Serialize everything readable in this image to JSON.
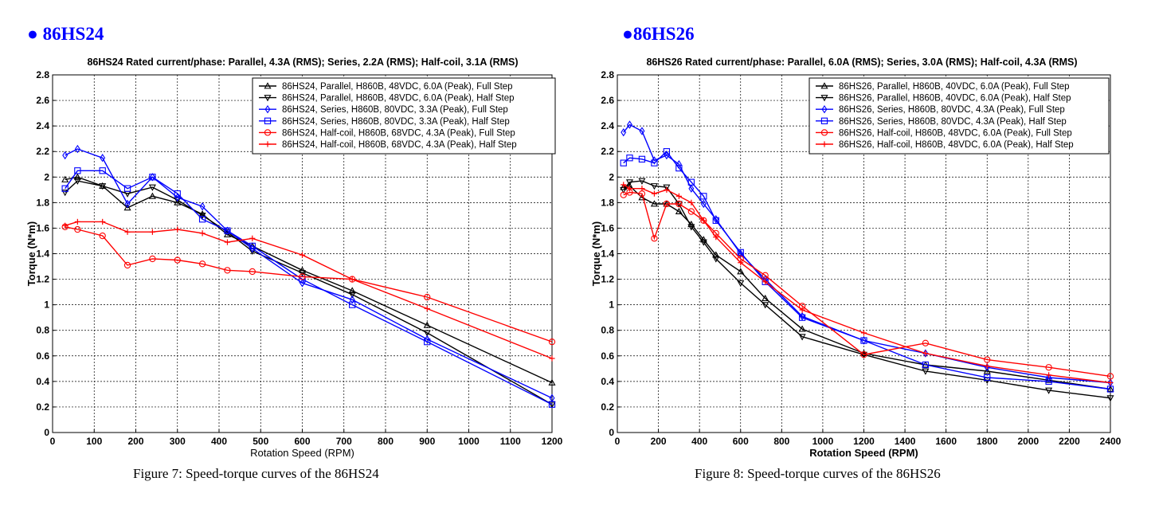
{
  "headers": [
    {
      "bullet": "●",
      "text": "86HS24"
    },
    {
      "bullet": "●",
      "text": "86HS26"
    }
  ],
  "captions": [
    "Figure 7: Speed-torque curves of the 86HS24",
    "Figure 8: Speed-torque curves of the 86HS26"
  ],
  "colors": {
    "header": "#0000ff",
    "black": "#000000",
    "blue": "#0000ff",
    "red": "#ff0000"
  },
  "chart_data": [
    {
      "type": "line",
      "title": "86HS24 Rated current/phase: Parallel, 4.3A (RMS); Series, 2.2A (RMS); Half-coil, 3.1A (RMS)",
      "xlabel": "Rotation Speed (RPM)",
      "ylabel": "Torque (N*m)",
      "xlim": [
        0,
        1200
      ],
      "ylim": [
        0,
        2.8
      ],
      "xticks": [
        0,
        100,
        200,
        300,
        400,
        500,
        600,
        700,
        800,
        900,
        1000,
        1100,
        1200
      ],
      "yticks": [
        0,
        0.2,
        0.4,
        0.6,
        0.8,
        1,
        1.2,
        1.4,
        1.6,
        1.8,
        2,
        2.2,
        2.4,
        2.6,
        2.8
      ],
      "grid": true,
      "legend_position": "top-right",
      "xlabel_bold": false,
      "x": [
        30,
        60,
        120,
        180,
        240,
        300,
        360,
        420,
        480,
        600,
        720,
        900,
        1200
      ],
      "series": [
        {
          "name": "86HS24, Parallel, H860B, 48VDC, 6.0A (Peak), Full Step",
          "color": "#000000",
          "marker": "triangle-up",
          "values": [
            1.98,
            2.0,
            1.93,
            1.76,
            1.85,
            1.8,
            1.71,
            1.55,
            1.46,
            1.27,
            1.11,
            0.84,
            0.39
          ]
        },
        {
          "name": "86HS24, Parallel, H860B, 48VDC, 6.0A (Peak), Half Step",
          "color": "#000000",
          "marker": "triangle-down",
          "values": [
            1.88,
            1.97,
            1.93,
            1.87,
            1.92,
            1.82,
            1.7,
            1.57,
            1.42,
            1.25,
            1.08,
            0.78,
            0.22
          ]
        },
        {
          "name": "86HS24, Series, H860B, 80VDC, 3.3A (Peak), Full Step",
          "color": "#0000ff",
          "marker": "diamond",
          "values": [
            2.17,
            2.22,
            2.15,
            1.79,
            2.0,
            1.84,
            1.77,
            1.58,
            1.44,
            1.17,
            1.04,
            0.73,
            0.27
          ]
        },
        {
          "name": "86HS24, Series, H860B, 80VDC, 3.3A (Peak), Half Step",
          "color": "#0000ff",
          "marker": "square",
          "values": [
            1.91,
            2.05,
            2.05,
            1.91,
            2.0,
            1.87,
            1.67,
            1.58,
            1.46,
            1.2,
            1.0,
            0.71,
            0.22
          ]
        },
        {
          "name": "86HS24, Half-coil, H860B, 68VDC, 4.3A (Peak), Full Step",
          "color": "#ff0000",
          "marker": "circle",
          "values": [
            1.61,
            1.59,
            1.54,
            1.31,
            1.36,
            1.35,
            1.32,
            1.27,
            1.26,
            1.22,
            1.2,
            1.06,
            0.71
          ]
        },
        {
          "name": "86HS24, Half-coil, H860B, 68VDC, 4.3A (Peak), Half Step",
          "color": "#ff0000",
          "marker": "plus",
          "values": [
            1.62,
            1.65,
            1.65,
            1.57,
            1.57,
            1.59,
            1.56,
            1.49,
            1.52,
            1.39,
            1.2,
            0.97,
            0.58
          ]
        }
      ]
    },
    {
      "type": "line",
      "title": "86HS26 Rated current/phase: Parallel, 6.0A (RMS); Series, 3.0A (RMS); Half-coil, 4.3A (RMS)",
      "xlabel": "Rotation Speed (RPM)",
      "ylabel": "Torque (N*m)",
      "xlim": [
        0,
        2400
      ],
      "ylim": [
        0,
        2.8
      ],
      "xticks": [
        0,
        200,
        400,
        600,
        800,
        1000,
        1200,
        1400,
        1600,
        1800,
        2000,
        2200,
        2400
      ],
      "yticks": [
        0,
        0.2,
        0.4,
        0.6,
        0.8,
        1,
        1.2,
        1.4,
        1.6,
        1.8,
        2,
        2.2,
        2.4,
        2.6,
        2.8
      ],
      "grid": true,
      "legend_position": "top-right",
      "xlabel_bold": true,
      "x": [
        30,
        60,
        120,
        180,
        240,
        300,
        360,
        420,
        480,
        600,
        720,
        900,
        1200,
        1500,
        1800,
        2100,
        2400
      ],
      "series": [
        {
          "name": "86HS26, Parallel, H860B, 40VDC, 6.0A (Peak), Full Step",
          "color": "#000000",
          "marker": "triangle-up",
          "values": [
            1.92,
            1.93,
            1.84,
            1.79,
            1.79,
            1.73,
            1.63,
            1.51,
            1.39,
            1.26,
            1.05,
            0.81,
            0.62,
            0.53,
            0.48,
            0.41,
            0.34
          ]
        },
        {
          "name": "86HS26, Parallel, H860B, 40VDC, 6.0A (Peak), Half Step",
          "color": "#000000",
          "marker": "triangle-down",
          "values": [
            1.9,
            1.96,
            1.97,
            1.93,
            1.92,
            1.79,
            1.61,
            1.49,
            1.36,
            1.17,
            1.0,
            0.75,
            0.61,
            0.48,
            0.41,
            0.33,
            0.27
          ]
        },
        {
          "name": "86HS26, Series, H860B, 80VDC, 4.3A (Peak), Full Step",
          "color": "#0000ff",
          "marker": "diamond",
          "values": [
            2.35,
            2.41,
            2.36,
            2.13,
            2.17,
            2.1,
            1.91,
            1.79,
            1.67,
            1.4,
            1.2,
            0.91,
            0.72,
            0.62,
            0.51,
            0.43,
            0.39
          ]
        },
        {
          "name": "86HS26, Series, H860B, 80VDC, 4.3A (Peak), Half Step",
          "color": "#0000ff",
          "marker": "square",
          "values": [
            2.11,
            2.15,
            2.14,
            2.11,
            2.2,
            2.07,
            1.96,
            1.85,
            1.66,
            1.41,
            1.18,
            0.9,
            0.72,
            0.53,
            0.43,
            0.4,
            0.34
          ]
        },
        {
          "name": "86HS26, Half-coil, H860B, 48VDC, 6.0A (Peak), Full Step",
          "color": "#ff0000",
          "marker": "circle",
          "values": [
            1.86,
            1.88,
            1.87,
            1.52,
            1.79,
            1.79,
            1.73,
            1.66,
            1.56,
            1.36,
            1.23,
            0.99,
            0.61,
            0.7,
            0.57,
            0.51,
            0.44
          ]
        },
        {
          "name": "86HS26, Half-coil, H860B, 48VDC, 6.0A (Peak), Half Step",
          "color": "#ff0000",
          "marker": "plus",
          "values": [
            1.94,
            1.91,
            1.91,
            1.87,
            1.9,
            1.85,
            1.8,
            1.66,
            1.53,
            1.33,
            1.18,
            0.96,
            0.78,
            0.62,
            0.52,
            0.45,
            0.39
          ]
        }
      ]
    }
  ]
}
